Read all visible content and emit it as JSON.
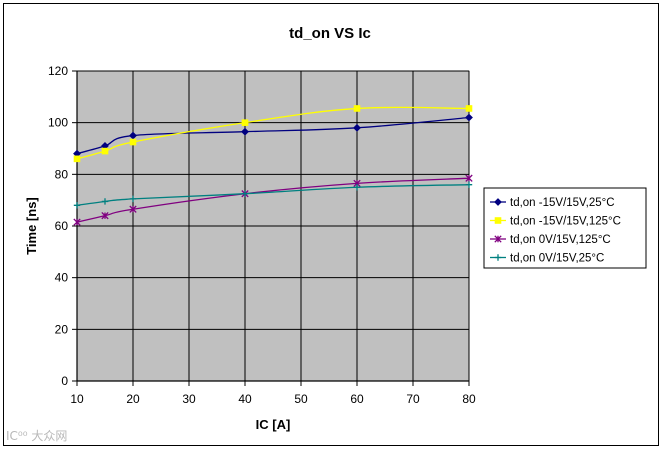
{
  "chart_data": {
    "type": "line",
    "title": "td_on VS Ic",
    "xlabel": "IC [A]",
    "ylabel": "Time [ns]",
    "xlim": [
      10,
      80
    ],
    "ylim": [
      0,
      120
    ],
    "xticks": [
      10,
      20,
      30,
      40,
      50,
      60,
      70,
      80
    ],
    "yticks": [
      0,
      20,
      40,
      60,
      80,
      100,
      120
    ],
    "grid": true,
    "plot_background": "#C0C0C0",
    "legend_position": "right",
    "series": [
      {
        "name": "td,on -15V/15V,25°C",
        "color": "#000080",
        "marker": "diamond",
        "x": [
          10,
          15,
          20,
          40,
          60,
          80
        ],
        "y": [
          88,
          91,
          95,
          96.5,
          98,
          102
        ]
      },
      {
        "name": "td,on -15V/15V,125°C",
        "color": "#FFFF00",
        "marker": "square",
        "x": [
          10,
          15,
          20,
          40,
          60,
          80
        ],
        "y": [
          86,
          89,
          92.5,
          100,
          105.5,
          105.5
        ]
      },
      {
        "name": "td,on 0V/15V,125°C",
        "color": "#800080",
        "marker": "x",
        "x": [
          10,
          15,
          20,
          40,
          60,
          80
        ],
        "y": [
          61.5,
          64,
          66.5,
          72.5,
          76.5,
          78.5
        ]
      },
      {
        "name": "td,on 0V/15V,25°C",
        "color": "#008080",
        "marker": "plus",
        "x": [
          10,
          15,
          20,
          40,
          60,
          80
        ],
        "y": [
          68,
          69.5,
          70.5,
          72.5,
          75,
          76
        ]
      }
    ]
  },
  "watermark": "IC⁰⁰ 大众网"
}
